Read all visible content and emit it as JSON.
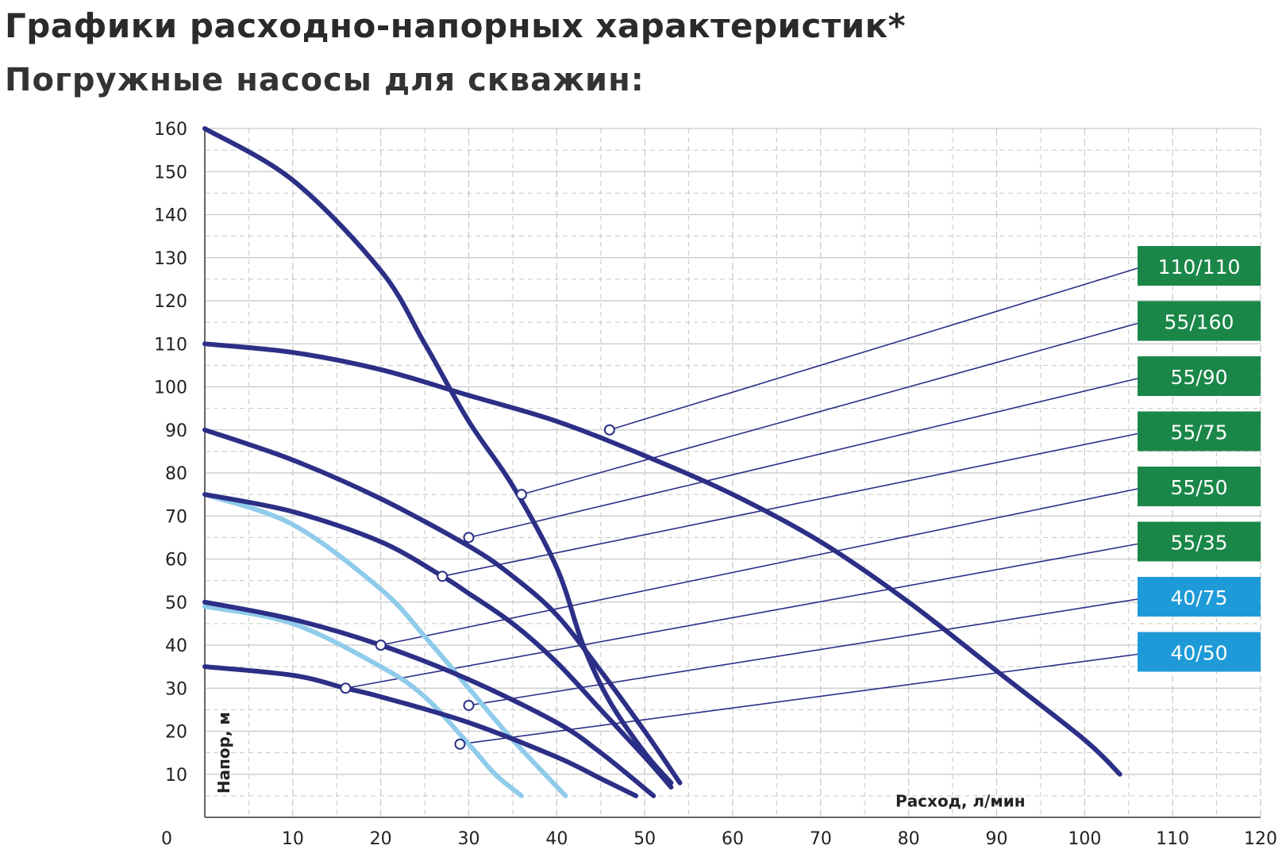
{
  "header": {
    "title": "Графики расходно-напорных характеристик*",
    "subtitle": "Погружные насосы для скважин:"
  },
  "colors": {
    "dark_curve": "#2b2f86",
    "light_curve": "#8fcbea",
    "green_label": "#1a8749",
    "blue_label": "#1f9ad8",
    "grid": "#c8c8c8"
  },
  "chart_data": {
    "type": "line",
    "title": "",
    "xlabel": "Расход, л/мин",
    "ylabel": "Напор, м",
    "xlim": [
      0,
      120
    ],
    "ylim": [
      0,
      160
    ],
    "x_ticks": [
      0,
      10,
      20,
      30,
      40,
      50,
      60,
      70,
      80,
      90,
      100,
      110,
      120
    ],
    "y_ticks": [
      10,
      20,
      30,
      40,
      50,
      60,
      70,
      80,
      90,
      100,
      110,
      120,
      130,
      140,
      150,
      160
    ],
    "grid": true,
    "legend_position": "right",
    "series": [
      {
        "name": "110/110",
        "style": "dark",
        "label_color": "green",
        "points": [
          [
            0,
            110
          ],
          [
            10,
            108
          ],
          [
            20,
            104
          ],
          [
            30,
            98
          ],
          [
            40,
            92
          ],
          [
            50,
            84
          ],
          [
            60,
            75
          ],
          [
            70,
            64
          ],
          [
            80,
            50
          ],
          [
            90,
            34
          ],
          [
            100,
            18
          ],
          [
            104,
            10
          ]
        ],
        "marker": [
          46,
          90
        ]
      },
      {
        "name": "55/160",
        "style": "dark",
        "label_color": "green",
        "points": [
          [
            0,
            160
          ],
          [
            10,
            148
          ],
          [
            20,
            127
          ],
          [
            25,
            110
          ],
          [
            30,
            92
          ],
          [
            35,
            77
          ],
          [
            40,
            58
          ],
          [
            43,
            40
          ],
          [
            46,
            27
          ],
          [
            50,
            15
          ],
          [
            53,
            8
          ]
        ],
        "marker": [
          36,
          75
        ]
      },
      {
        "name": "55/90",
        "style": "dark",
        "label_color": "green",
        "points": [
          [
            0,
            90
          ],
          [
            10,
            83
          ],
          [
            20,
            74
          ],
          [
            30,
            63
          ],
          [
            35,
            56
          ],
          [
            40,
            47
          ],
          [
            45,
            34
          ],
          [
            50,
            20
          ],
          [
            54,
            8
          ]
        ],
        "marker": [
          30,
          65
        ]
      },
      {
        "name": "55/75",
        "style": "dark",
        "label_color": "green",
        "points": [
          [
            0,
            75
          ],
          [
            10,
            71
          ],
          [
            20,
            64
          ],
          [
            27,
            56
          ],
          [
            30,
            52
          ],
          [
            35,
            45
          ],
          [
            40,
            36
          ],
          [
            45,
            25
          ],
          [
            50,
            14
          ],
          [
            53,
            7
          ]
        ],
        "marker": [
          27,
          56
        ]
      },
      {
        "name": "55/50",
        "style": "dark",
        "label_color": "green",
        "points": [
          [
            0,
            50
          ],
          [
            10,
            46
          ],
          [
            20,
            40
          ],
          [
            30,
            32
          ],
          [
            40,
            22
          ],
          [
            45,
            15
          ],
          [
            51,
            5
          ]
        ],
        "marker": [
          20,
          40
        ]
      },
      {
        "name": "55/35",
        "style": "dark",
        "label_color": "green",
        "points": [
          [
            0,
            35
          ],
          [
            10,
            33
          ],
          [
            16,
            30
          ],
          [
            20,
            28
          ],
          [
            30,
            22
          ],
          [
            40,
            14
          ],
          [
            45,
            9
          ],
          [
            49,
            5
          ]
        ],
        "marker": [
          16,
          30
        ]
      },
      {
        "name": "40/75",
        "style": "light",
        "label_color": "blue",
        "points": [
          [
            0,
            75
          ],
          [
            10,
            68
          ],
          [
            20,
            53
          ],
          [
            25,
            42
          ],
          [
            30,
            30
          ],
          [
            35,
            18
          ],
          [
            41,
            5
          ]
        ],
        "marker": [
          30,
          26
        ]
      },
      {
        "name": "40/50",
        "style": "light",
        "label_color": "blue",
        "points": [
          [
            0,
            49
          ],
          [
            10,
            45
          ],
          [
            20,
            35
          ],
          [
            25,
            28
          ],
          [
            30,
            17
          ],
          [
            33,
            10
          ],
          [
            36,
            5
          ]
        ],
        "marker": [
          29,
          17
        ]
      }
    ]
  }
}
